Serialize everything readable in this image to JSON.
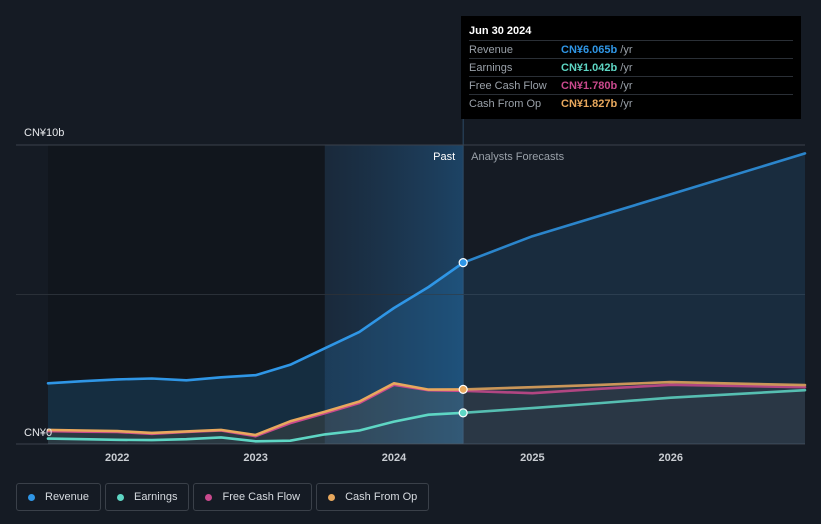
{
  "chart_data": {
    "type": "area",
    "y_axis_labels": {
      "top": "CN¥10b",
      "bottom": "CN¥0"
    },
    "ylim": [
      0,
      10
    ],
    "y_unit": "CN¥ billions",
    "xlim": [
      2021.5,
      2026.97
    ],
    "x_ticks": [
      {
        "value": 2022,
        "label": "2022"
      },
      {
        "value": 2023,
        "label": "2023"
      },
      {
        "value": 2024,
        "label": "2024"
      },
      {
        "value": 2025,
        "label": "2025"
      },
      {
        "value": 2026,
        "label": "2026"
      }
    ],
    "regions": {
      "past_label": "Past",
      "forecast_label": "Analysts Forecasts",
      "shade_start": 2023.5,
      "divider": 2024.5
    },
    "series": [
      {
        "key": "revenue",
        "name": "Revenue",
        "color": "#2f96e6",
        "past": [
          [
            2021.5,
            2.03
          ],
          [
            2021.75,
            2.1
          ],
          [
            2022,
            2.16
          ],
          [
            2022.25,
            2.19
          ],
          [
            2022.5,
            2.13
          ],
          [
            2022.75,
            2.23
          ],
          [
            2023,
            2.3
          ],
          [
            2023.25,
            2.65
          ],
          [
            2023.5,
            3.2
          ],
          [
            2023.75,
            3.75
          ],
          [
            2024,
            4.55
          ],
          [
            2024.25,
            5.25
          ],
          [
            2024.5,
            6.065
          ]
        ],
        "forecast": [
          [
            2024.5,
            6.065
          ],
          [
            2025,
            6.95
          ],
          [
            2025.5,
            7.65
          ],
          [
            2026,
            8.35
          ],
          [
            2026.97,
            9.72
          ]
        ]
      },
      {
        "key": "earnings",
        "name": "Earnings",
        "color": "#5ed6c4",
        "past": [
          [
            2021.5,
            0.18
          ],
          [
            2021.75,
            0.16
          ],
          [
            2022,
            0.14
          ],
          [
            2022.25,
            0.13
          ],
          [
            2022.5,
            0.16
          ],
          [
            2022.75,
            0.22
          ],
          [
            2023,
            0.09
          ],
          [
            2023.25,
            0.11
          ],
          [
            2023.5,
            0.32
          ],
          [
            2023.75,
            0.45
          ],
          [
            2024,
            0.75
          ],
          [
            2024.25,
            0.98
          ],
          [
            2024.5,
            1.042
          ]
        ],
        "forecast": [
          [
            2024.5,
            1.042
          ],
          [
            2025,
            1.2
          ],
          [
            2025.5,
            1.37
          ],
          [
            2026,
            1.55
          ],
          [
            2026.97,
            1.8
          ]
        ]
      },
      {
        "key": "fcf",
        "name": "Free Cash Flow",
        "color": "#c9498d",
        "past": [
          [
            2021.5,
            0.43
          ],
          [
            2021.75,
            0.41
          ],
          [
            2022,
            0.4
          ],
          [
            2022.25,
            0.34
          ],
          [
            2022.5,
            0.4
          ],
          [
            2022.75,
            0.45
          ],
          [
            2023,
            0.26
          ],
          [
            2023.25,
            0.7
          ],
          [
            2023.5,
            1.03
          ],
          [
            2023.75,
            1.37
          ],
          [
            2024,
            1.98
          ],
          [
            2024.25,
            1.8
          ],
          [
            2024.5,
            1.78
          ]
        ],
        "forecast": [
          [
            2024.5,
            1.78
          ],
          [
            2025,
            1.7
          ],
          [
            2025.5,
            1.85
          ],
          [
            2026,
            1.98
          ],
          [
            2026.97,
            1.9
          ]
        ]
      },
      {
        "key": "cfo",
        "name": "Cash From Op",
        "color": "#e8a85d",
        "past": [
          [
            2021.5,
            0.47
          ],
          [
            2021.75,
            0.45
          ],
          [
            2022,
            0.43
          ],
          [
            2022.25,
            0.37
          ],
          [
            2022.5,
            0.42
          ],
          [
            2022.75,
            0.47
          ],
          [
            2023,
            0.3
          ],
          [
            2023.25,
            0.76
          ],
          [
            2023.5,
            1.08
          ],
          [
            2023.75,
            1.42
          ],
          [
            2024,
            2.03
          ],
          [
            2024.25,
            1.82
          ],
          [
            2024.5,
            1.827
          ]
        ],
        "forecast": [
          [
            2024.5,
            1.827
          ],
          [
            2025,
            1.9
          ],
          [
            2025.5,
            1.98
          ],
          [
            2026,
            2.07
          ],
          [
            2026.97,
            1.97
          ]
        ]
      }
    ]
  },
  "tooltip": {
    "date": "Jun 30 2024",
    "rows": [
      {
        "name": "Revenue",
        "value": "CN¥6.065b",
        "unit": "/yr",
        "color": "#2f96e6"
      },
      {
        "name": "Earnings",
        "value": "CN¥1.042b",
        "unit": "/yr",
        "color": "#5ed6c4"
      },
      {
        "name": "Free Cash Flow",
        "value": "CN¥1.780b",
        "unit": "/yr",
        "color": "#c9498d"
      },
      {
        "name": "Cash From Op",
        "value": "CN¥1.827b",
        "unit": "/yr",
        "color": "#e8a85d"
      }
    ]
  },
  "legend": [
    {
      "label": "Revenue",
      "color": "#2f96e6"
    },
    {
      "label": "Earnings",
      "color": "#5ed6c4"
    },
    {
      "label": "Free Cash Flow",
      "color": "#c9498d"
    },
    {
      "label": "Cash From Op",
      "color": "#e8a85d"
    }
  ]
}
